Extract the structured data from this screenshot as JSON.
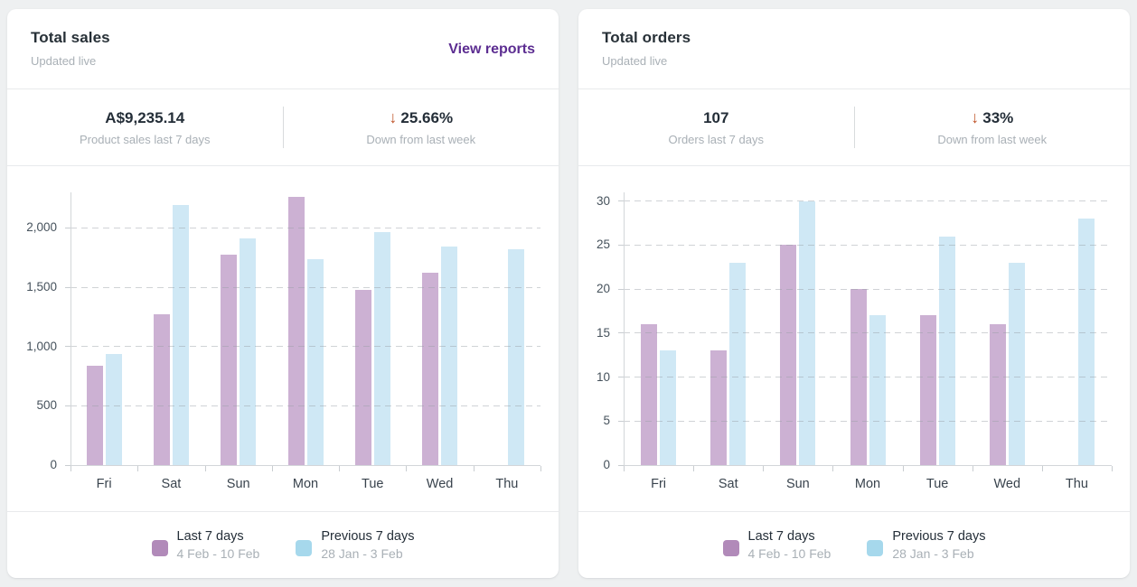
{
  "colors": {
    "page_background": "#eef0f1",
    "card_background": "#ffffff",
    "link": "#5c2d91",
    "trend_down": "#bf5328",
    "series_purple_legend": "#b18ab9",
    "series_blue_legend": "#a6d8ec",
    "bar_purple": "#ccb1d3",
    "bar_blue": "#cfe8f5",
    "text_dark": "#242e38",
    "text_muted": "#a9b0b6"
  },
  "cards": [
    {
      "title": "Total sales",
      "subtitle": "Updated live",
      "link": "View reports",
      "stats": [
        {
          "value": "A$9,235.14",
          "label": "Product sales last 7 days"
        },
        {
          "arrow": "↓",
          "value": "25.66%",
          "label": "Down from last week"
        }
      ],
      "legend": [
        {
          "label": "Last 7 days",
          "range": "4 Feb - 10 Feb",
          "color": "#b18ab9"
        },
        {
          "label": "Previous 7 days",
          "range": "28 Jan - 3 Feb",
          "color": "#a6d8ec"
        }
      ],
      "chart_data": {
        "type": "bar",
        "title": "Total sales",
        "categories": [
          "Fri",
          "Sat",
          "Sun",
          "Mon",
          "Tue",
          "Wed",
          "Thu"
        ],
        "series": [
          {
            "name": "Last 7 days",
            "color": "#ccb1d3",
            "values": [
              835,
              1270,
              1775,
              2260,
              1475,
              1620,
              null
            ]
          },
          {
            "name": "Previous 7 days",
            "color": "#cfe8f5",
            "values": [
              935,
              2190,
              1910,
              1735,
              1965,
              1845,
              1820
            ]
          }
        ],
        "ylim": [
          0,
          2300
        ],
        "yticks": [
          0,
          500,
          1000,
          1500,
          2000
        ],
        "ytick_labels": [
          "0",
          "500",
          "1,000",
          "1,500",
          "2,000"
        ],
        "grid": "dashed horizontal",
        "legend_position": "bottom"
      }
    },
    {
      "title": "Total orders",
      "subtitle": "Updated live",
      "stats": [
        {
          "value": "107",
          "label": "Orders last 7 days"
        },
        {
          "arrow": "↓",
          "value": "33%",
          "label": "Down from last week"
        }
      ],
      "legend": [
        {
          "label": "Last 7 days",
          "range": "4 Feb - 10 Feb",
          "color": "#b18ab9"
        },
        {
          "label": "Previous 7 days",
          "range": "28 Jan - 3 Feb",
          "color": "#a6d8ec"
        }
      ],
      "chart_data": {
        "type": "bar",
        "title": "Total orders",
        "categories": [
          "Fri",
          "Sat",
          "Sun",
          "Mon",
          "Tue",
          "Wed",
          "Thu"
        ],
        "series": [
          {
            "name": "Last 7 days",
            "color": "#ccb1d3",
            "values": [
              16,
              13,
              25,
              20,
              17,
              16,
              null
            ]
          },
          {
            "name": "Previous 7 days",
            "color": "#cfe8f5",
            "values": [
              13,
              23,
              30,
              17,
              26,
              23,
              28
            ]
          }
        ],
        "ylim": [
          0,
          31
        ],
        "yticks": [
          0,
          5,
          10,
          15,
          20,
          25,
          30
        ],
        "ytick_labels": [
          "0",
          "5",
          "10",
          "15",
          "20",
          "25",
          "30"
        ],
        "grid": "dashed horizontal",
        "legend_position": "bottom"
      }
    }
  ]
}
